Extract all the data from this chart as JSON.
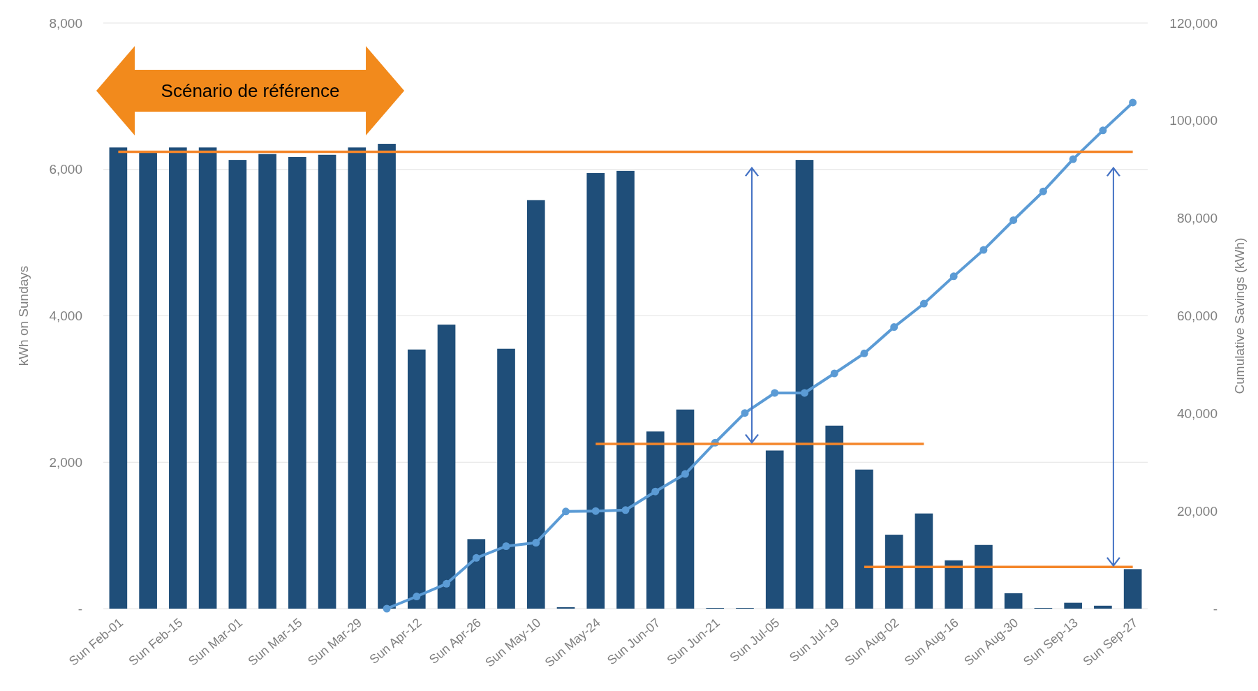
{
  "chart_data": {
    "type": "bar",
    "ylabel": "kWh on Sundays",
    "y2label": "Cumulative Savings (kWh)",
    "categories": [
      "Sun Feb-01",
      null,
      "Sun Feb-15",
      null,
      "Sun Mar-01",
      null,
      "Sun Mar-15",
      null,
      "Sun Mar-29",
      null,
      "Sun Apr-12",
      null,
      "Sun Apr-26",
      null,
      "Sun May-10",
      null,
      "Sun May-24",
      null,
      "Sun Jun-07",
      null,
      "Sun Jun-21",
      null,
      "Sun Jul-05",
      null,
      "Sun Jul-19",
      null,
      "Sun Aug-02",
      null,
      "Sun Aug-16",
      null,
      "Sun Aug-30",
      null,
      "Sun Sep-13",
      null,
      "Sun Sep-27"
    ],
    "series": [
      {
        "color": "#1f4e79",
        "values": [
          6300,
          6250,
          6300,
          6300,
          6130,
          6210,
          6170,
          6200,
          6300,
          6350,
          3540,
          3880,
          950,
          3550,
          5580,
          20,
          5950,
          5980,
          2420,
          2720,
          10,
          10,
          2160,
          6130,
          2500,
          1900,
          1010,
          1300,
          660,
          870,
          210,
          10,
          80,
          40,
          540
        ]
      },
      {
        "type": "line",
        "axis": "y2",
        "color": "#5b9bd5",
        "marker": "circle",
        "values": [
          null,
          null,
          null,
          null,
          null,
          null,
          null,
          null,
          null,
          0,
          2500,
          5100,
          10400,
          12800,
          13500,
          19900,
          20000,
          20200,
          24000,
          27600,
          34000,
          40100,
          44200,
          44200,
          48200,
          52300,
          57700,
          62500,
          68100,
          73500,
          79600,
          85500,
          92100,
          98000,
          103700
        ]
      },
      {
        "type": "line",
        "color": "#f4862a",
        "marker": "none",
        "values": [
          6240,
          6240,
          6240,
          6240,
          6240,
          6240,
          6240,
          6240,
          6240,
          6240,
          6240,
          6240,
          6240,
          6240,
          6240,
          6240,
          6240,
          6240,
          6240,
          6240,
          6240,
          6240,
          6240,
          6240,
          6240,
          6240,
          6240,
          6240,
          6240,
          6240,
          6240,
          6240,
          6240,
          6240,
          6240
        ]
      },
      {
        "type": "line",
        "color": "#f4862a",
        "marker": "none",
        "values": [
          null,
          null,
          null,
          null,
          null,
          null,
          null,
          null,
          null,
          null,
          null,
          null,
          null,
          null,
          null,
          null,
          2250,
          2250,
          2250,
          2250,
          2250,
          2250,
          2250,
          2250,
          2250,
          2250,
          2250,
          2250,
          null,
          null,
          null,
          null,
          null,
          null,
          null
        ]
      },
      {
        "type": "line",
        "color": "#f4862a",
        "marker": "none",
        "values": [
          null,
          null,
          null,
          null,
          null,
          null,
          null,
          null,
          null,
          null,
          null,
          null,
          null,
          null,
          null,
          null,
          null,
          null,
          null,
          null,
          null,
          null,
          null,
          null,
          null,
          570,
          570,
          570,
          570,
          570,
          570,
          570,
          570,
          570,
          570
        ]
      }
    ],
    "ylim": [
      0,
      8000
    ],
    "yticks": [
      {
        "value": 0,
        "label": "-"
      },
      {
        "value": 2000,
        "label": "2,000"
      },
      {
        "value": 4000,
        "label": "4,000"
      },
      {
        "value": 6000,
        "label": "6,000"
      },
      {
        "value": 8000,
        "label": "8,000"
      }
    ],
    "y2lim": [
      0,
      120000
    ],
    "y2ticks": [
      {
        "value": 0,
        "label": "-"
      },
      {
        "value": 20000,
        "label": "20,000"
      },
      {
        "value": 40000,
        "label": "40,000"
      },
      {
        "value": 60000,
        "label": "60,000"
      },
      {
        "value": 80000,
        "label": "80,000"
      },
      {
        "value": 100000,
        "label": "100,000"
      },
      {
        "value": 120000,
        "label": "120,000"
      }
    ],
    "grid": "y",
    "annotations": [
      "Scénario de référence"
    ]
  }
}
